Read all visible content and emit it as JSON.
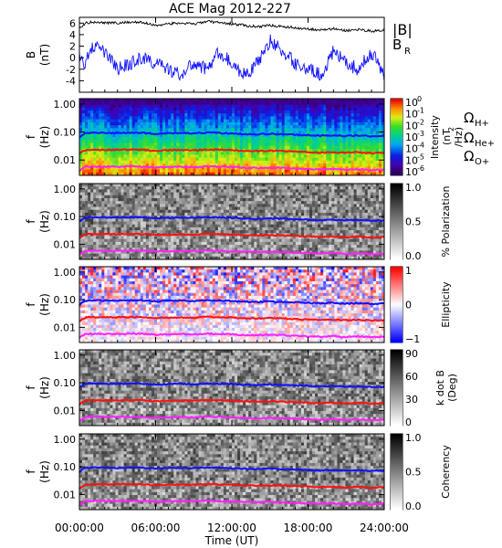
{
  "chart_data": {
    "type": "heatmap",
    "title": "ACE Mag 2012-227",
    "xlabel": "Time (UT)",
    "x_ticks": [
      "00:00:00",
      "06:00:00",
      "12:00:00",
      "18:00:00",
      "24:00:00"
    ],
    "x_range_hours": [
      0,
      24
    ],
    "colors": {
      "blue": "#1010ff",
      "red": "#ff1010",
      "magenta": "#ff20ff",
      "black": "#000000"
    },
    "panels": [
      {
        "kind": "line",
        "ylabel": [
          "B",
          "(nT)"
        ],
        "y_ticks": [
          "6",
          "4",
          "2",
          "0",
          "-2",
          "-4"
        ],
        "ylim": [
          -6,
          7
        ],
        "series": [
          {
            "name": "|B|",
            "color": "#000000",
            "x": [
              0,
              0.5,
              1,
              2,
              3,
              4,
              5,
              6,
              7,
              8,
              9,
              10,
              11,
              12,
              13,
              14,
              15,
              16,
              17,
              18,
              19,
              20,
              21,
              22,
              23,
              24
            ],
            "values": [
              5.2,
              6.0,
              6.2,
              6.1,
              6.0,
              6.2,
              6.1,
              5.6,
              5.9,
              6.0,
              5.8,
              6.3,
              6.1,
              5.9,
              5.6,
              5.4,
              5.6,
              5.4,
              5.2,
              5.0,
              4.8,
              5.0,
              4.7,
              4.9,
              4.6,
              4.8
            ]
          },
          {
            "name": "B",
            "subscript": "R",
            "color": "#1010ff",
            "x": [
              0,
              0.5,
              1,
              2,
              3,
              4,
              5,
              6,
              7,
              8,
              9,
              10,
              11,
              12,
              13,
              14,
              15,
              16,
              17,
              18,
              19,
              20,
              21,
              22,
              23,
              24
            ],
            "values": [
              0,
              -1,
              2,
              1,
              -2,
              -1,
              0,
              -1,
              -2,
              -3,
              -1,
              -2,
              1,
              -1,
              -3,
              -1,
              3,
              1,
              -1,
              -2,
              -3,
              1,
              -1,
              -2,
              1,
              -3
            ]
          }
        ]
      },
      {
        "kind": "spectrogram",
        "colormap": "rainbow",
        "ylabel": [
          "f",
          "(Hz)"
        ],
        "y_ticks": [
          "1.00",
          "0.10",
          "0.01"
        ],
        "ylim_log": [
          0.003,
          1.0
        ],
        "colorbar": {
          "ticks": [
            "10",
            "10",
            "10",
            "10",
            "10",
            "10",
            "10"
          ],
          "tick_exp": [
            "0",
            "-1",
            "-2",
            "-3",
            "-4",
            "-5",
            "-6"
          ],
          "label": [
            "Intensity",
            "(nT",
            "/Hz)"
          ],
          "label_sup": "2"
        }
      },
      {
        "kind": "spectrogram",
        "colormap": "gray",
        "ylabel": [
          "f",
          "(Hz)"
        ],
        "y_ticks": [
          "1.00",
          "0.10",
          "0.01"
        ],
        "colorbar": {
          "ticks": [
            "1.0",
            "0.5",
            "0.0"
          ],
          "label": [
            "% Polarization"
          ]
        }
      },
      {
        "kind": "spectrogram",
        "colormap": "bwr",
        "ylabel": [
          "f",
          "(Hz)"
        ],
        "y_ticks": [
          "1.00",
          "0.10",
          "0.01"
        ],
        "colorbar": {
          "ticks": [
            "1",
            "0",
            "−1"
          ],
          "label": [
            "Ellipticity"
          ]
        }
      },
      {
        "kind": "spectrogram",
        "colormap": "gray",
        "ylabel": [
          "f",
          "(Hz)"
        ],
        "y_ticks": [
          "1.00",
          "0.10",
          "0.01"
        ],
        "colorbar": {
          "ticks": [
            "90",
            "60",
            "30",
            "0"
          ],
          "label": [
            "k dot B",
            "(Deg)"
          ]
        }
      },
      {
        "kind": "spectrogram",
        "colormap": "gray",
        "ylabel": [
          "f",
          "(Hz)"
        ],
        "y_ticks": [
          "1.00",
          "0.10",
          "0.01"
        ],
        "colorbar": {
          "ticks": [
            "1.0",
            "0.5",
            "0.0"
          ],
          "label": [
            "Coherency"
          ]
        }
      }
    ],
    "gyrofrequency_series": [
      {
        "name": "Ω",
        "subscript": "H+",
        "color": "#1010ff",
        "x": [
          0,
          0.25,
          0.5,
          1,
          2,
          3,
          4,
          5,
          6,
          7,
          8,
          9,
          10,
          11,
          12,
          13,
          14,
          15,
          16,
          17,
          18,
          19,
          20,
          21,
          22,
          23,
          24
        ],
        "values_hz": [
          0.065,
          0.08,
          0.092,
          0.094,
          0.093,
          0.092,
          0.094,
          0.093,
          0.086,
          0.09,
          0.092,
          0.089,
          0.095,
          0.093,
          0.09,
          0.085,
          0.083,
          0.086,
          0.083,
          0.08,
          0.077,
          0.074,
          0.076,
          0.072,
          0.075,
          0.07,
          0.073
        ]
      },
      {
        "name": "Ω",
        "subscript": "He+",
        "color": "#ff1010",
        "x": [
          0,
          0.25,
          0.5,
          1,
          2,
          3,
          4,
          5,
          6,
          7,
          8,
          9,
          10,
          11,
          12,
          13,
          14,
          15,
          16,
          17,
          18,
          19,
          20,
          21,
          22,
          23,
          24
        ],
        "values_hz": [
          0.016,
          0.02,
          0.023,
          0.0235,
          0.0232,
          0.023,
          0.0235,
          0.0232,
          0.0215,
          0.0225,
          0.023,
          0.0222,
          0.0238,
          0.0232,
          0.0225,
          0.0212,
          0.0208,
          0.0215,
          0.0208,
          0.02,
          0.0192,
          0.0185,
          0.019,
          0.018,
          0.0188,
          0.0175,
          0.0182
        ]
      },
      {
        "name": "Ω",
        "subscript": "O+",
        "color": "#ff20ff",
        "x": [
          0,
          0.25,
          0.5,
          1,
          2,
          3,
          4,
          5,
          6,
          7,
          8,
          9,
          10,
          11,
          12,
          13,
          14,
          15,
          16,
          17,
          18,
          19,
          20,
          21,
          22,
          23,
          24
        ],
        "values_hz": [
          0.004,
          0.005,
          0.0058,
          0.0059,
          0.0058,
          0.0058,
          0.0059,
          0.0058,
          0.0054,
          0.0056,
          0.0058,
          0.0056,
          0.006,
          0.0058,
          0.0056,
          0.0053,
          0.0052,
          0.0054,
          0.0052,
          0.005,
          0.0048,
          0.0046,
          0.0048,
          0.0045,
          0.0047,
          0.0044,
          0.0046
        ]
      }
    ]
  }
}
